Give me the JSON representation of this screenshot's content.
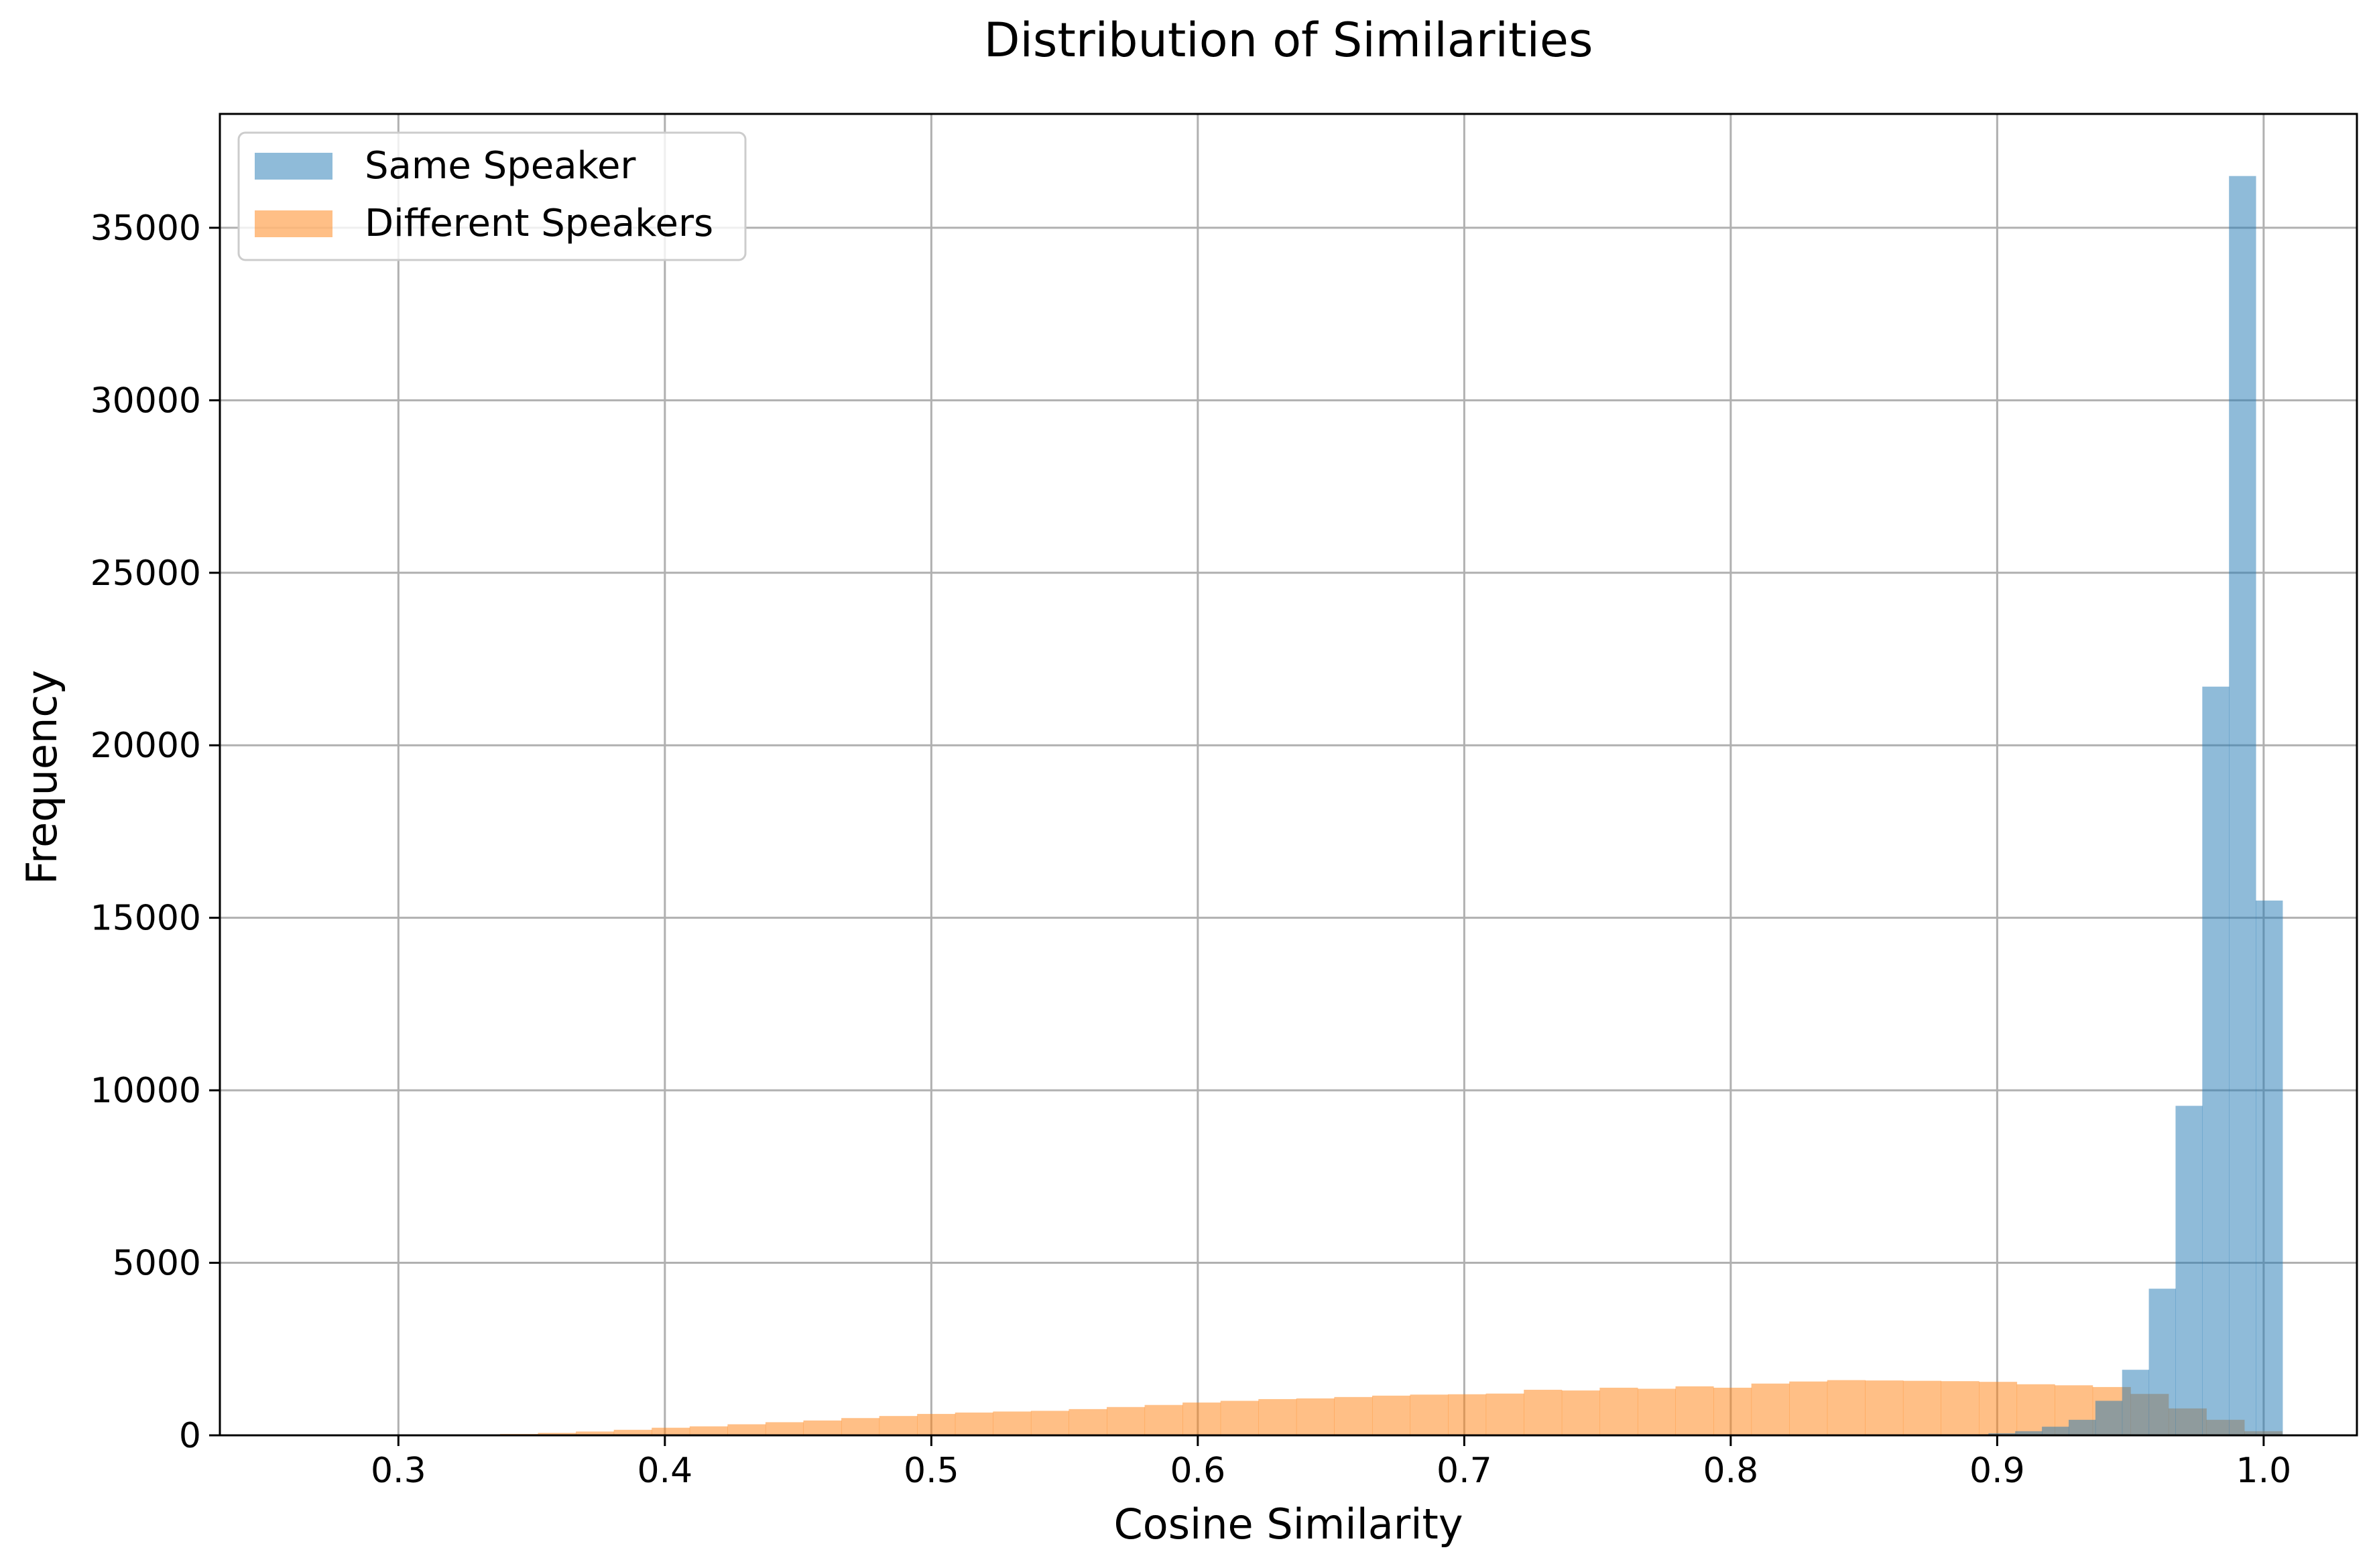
{
  "chart_data": {
    "type": "bar",
    "title": "Distribution of Similarities",
    "xlabel": "Cosine Similarity",
    "ylabel": "Frequency",
    "xlim": [
      0.233,
      1.035
    ],
    "ylim": [
      0,
      38300
    ],
    "xticks": [
      "0.3",
      "0.4",
      "0.5",
      "0.6",
      "0.7",
      "0.8",
      "0.9",
      "1.0"
    ],
    "yticks": [
      "0",
      "5000",
      "10000",
      "15000",
      "20000",
      "25000",
      "30000",
      "35000"
    ],
    "grid": true,
    "legend_position": "top-left",
    "series": [
      {
        "name": "Same Speaker",
        "color": "#1f77b4",
        "opacity": 0.5,
        "bin_start": 0.8867,
        "bin_width": 0.01003,
        "values": [
          30,
          60,
          120,
          250,
          450,
          1000,
          1900,
          4250,
          9550,
          21700,
          36500,
          15500
        ]
      },
      {
        "name": "Different Speakers",
        "color": "#ff7f0e",
        "opacity": 0.5,
        "bin_start": 0.267,
        "bin_width": 0.01423,
        "values": [
          2,
          5,
          8,
          15,
          25,
          40,
          70,
          110,
          160,
          220,
          260,
          320,
          380,
          430,
          500,
          560,
          620,
          660,
          690,
          710,
          760,
          820,
          880,
          950,
          1000,
          1050,
          1070,
          1110,
          1150,
          1180,
          1190,
          1210,
          1320,
          1300,
          1380,
          1350,
          1420,
          1380,
          1500,
          1560,
          1600,
          1590,
          1580,
          1570,
          1550,
          1480,
          1450,
          1400,
          1200,
          780,
          450,
          120,
          20
        ]
      }
    ]
  }
}
